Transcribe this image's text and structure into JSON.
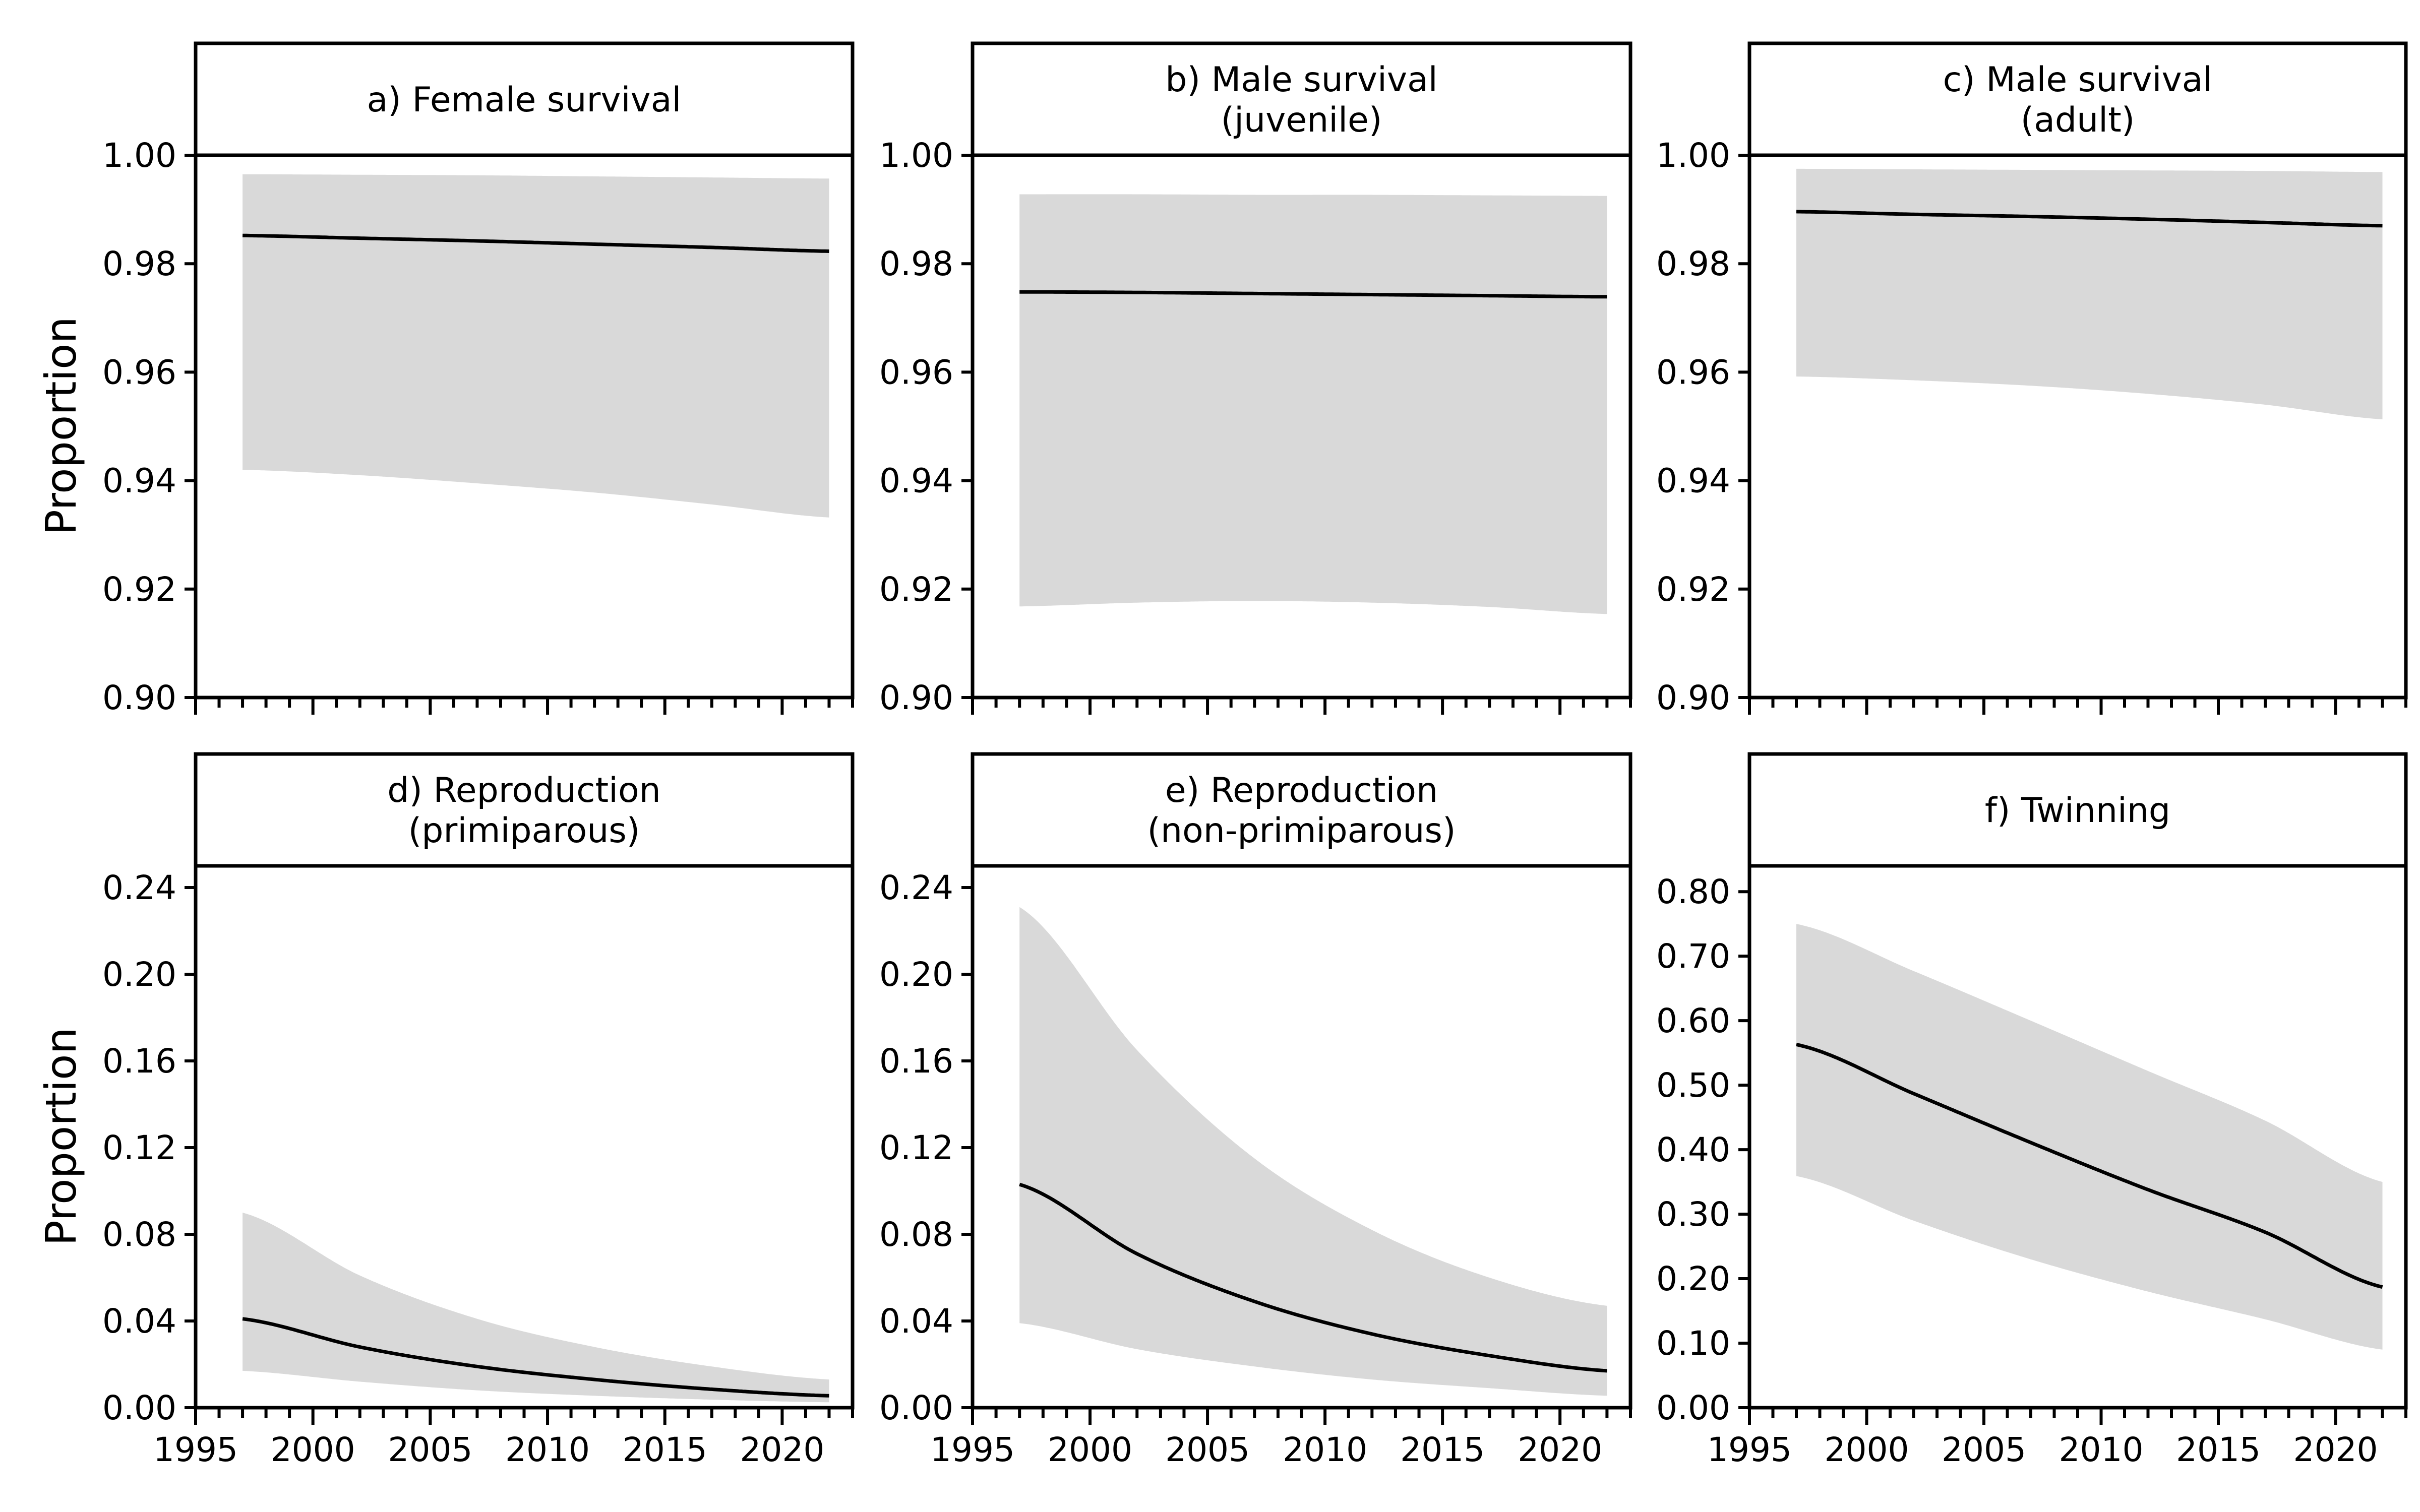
{
  "figure": {
    "ylabel": "Proportion",
    "band_color": "#d9d9d9",
    "line_color": "#000000"
  },
  "chart_data": [
    {
      "type": "line",
      "title_lines": [
        "a) Female survival"
      ],
      "xlabel": "",
      "ylabel": "Proportion",
      "xlim": [
        1995,
        2023
      ],
      "ylim": [
        0.9,
        1.0
      ],
      "xticks": [
        1995,
        2000,
        2005,
        2010,
        2015,
        2020
      ],
      "xtick_labels": [],
      "yticks": [
        0.9,
        0.92,
        0.94,
        0.96,
        0.98,
        1.0
      ],
      "ytick_labels": [
        "0.90",
        "0.92",
        "0.94",
        "0.96",
        "0.98",
        "1.00"
      ],
      "x": [
        1997,
        2002,
        2007,
        2012,
        2017,
        2022
      ],
      "series": [
        {
          "estimate": [
            0.9852,
            0.9847,
            0.9842,
            0.9836,
            0.983,
            0.9823
          ],
          "lower": [
            0.942,
            0.941,
            0.9395,
            0.9378,
            0.9356,
            0.9332
          ],
          "upper": [
            0.9965,
            0.9964,
            0.9963,
            0.9961,
            0.9959,
            0.9957
          ]
        }
      ]
    },
    {
      "type": "line",
      "title_lines": [
        "b) Male survival",
        "(juvenile)"
      ],
      "xlabel": "",
      "ylabel": "",
      "xlim": [
        1995,
        2023
      ],
      "ylim": [
        0.9,
        1.0
      ],
      "xticks": [
        1995,
        2000,
        2005,
        2010,
        2015,
        2020
      ],
      "xtick_labels": [],
      "yticks": [
        0.9,
        0.92,
        0.94,
        0.96,
        0.98,
        1.0
      ],
      "ytick_labels": [
        "0.90",
        "0.92",
        "0.94",
        "0.96",
        "0.98",
        "1.00"
      ],
      "x": [
        1997,
        2002,
        2007,
        2012,
        2017,
        2022
      ],
      "series": [
        {
          "estimate": [
            0.9748,
            0.9747,
            0.9745,
            0.9743,
            0.9741,
            0.9739
          ],
          "lower": [
            0.9168,
            0.9175,
            0.9178,
            0.9175,
            0.9167,
            0.9154
          ],
          "upper": [
            0.9928,
            0.9928,
            0.9927,
            0.9927,
            0.9926,
            0.9925
          ]
        }
      ]
    },
    {
      "type": "line",
      "title_lines": [
        "c) Male survival",
        "(adult)"
      ],
      "xlabel": "",
      "ylabel": "",
      "xlim": [
        1995,
        2023
      ],
      "ylim": [
        0.9,
        1.0
      ],
      "xticks": [
        1995,
        2000,
        2005,
        2010,
        2015,
        2020
      ],
      "xtick_labels": [],
      "yticks": [
        0.9,
        0.92,
        0.94,
        0.96,
        0.98,
        1.0
      ],
      "ytick_labels": [
        "0.90",
        "0.92",
        "0.94",
        "0.96",
        "0.98",
        "1.00"
      ],
      "x": [
        1997,
        2002,
        2007,
        2012,
        2017,
        2022
      ],
      "series": [
        {
          "estimate": [
            0.9896,
            0.9891,
            0.9887,
            0.9882,
            0.9876,
            0.987
          ],
          "lower": [
            0.9592,
            0.9585,
            0.9575,
            0.956,
            0.954,
            0.9513
          ],
          "upper": [
            0.9975,
            0.9974,
            0.9973,
            0.9972,
            0.9971,
            0.9969
          ]
        }
      ]
    },
    {
      "type": "line",
      "title_lines": [
        "d) Reproduction",
        "(primiparous)"
      ],
      "xlabel": "",
      "ylabel": "Proportion",
      "xlim": [
        1995,
        2023
      ],
      "ylim": [
        0.0,
        0.25
      ],
      "xticks": [
        1995,
        2000,
        2005,
        2010,
        2015,
        2020
      ],
      "xtick_labels": [
        "1995",
        "2000",
        "2005",
        "2010",
        "2015",
        "2020"
      ],
      "yticks": [
        0.0,
        0.04,
        0.08,
        0.12,
        0.16,
        0.2,
        0.24
      ],
      "ytick_labels": [
        "0.00",
        "0.04",
        "0.08",
        "0.12",
        "0.16",
        "0.20",
        "0.24"
      ],
      "x": [
        1997,
        2002,
        2007,
        2012,
        2017,
        2022
      ],
      "series": [
        {
          "estimate": [
            0.041,
            0.028,
            0.019,
            0.013,
            0.0085,
            0.0055
          ],
          "lower": [
            0.017,
            0.012,
            0.008,
            0.0055,
            0.0037,
            0.0025
          ],
          "upper": [
            0.09,
            0.061,
            0.041,
            0.028,
            0.019,
            0.013
          ]
        }
      ]
    },
    {
      "type": "line",
      "title_lines": [
        "e) Reproduction",
        "(non-primiparous)"
      ],
      "xlabel": "",
      "ylabel": "",
      "xlim": [
        1995,
        2023
      ],
      "ylim": [
        0.0,
        0.25
      ],
      "xticks": [
        1995,
        2000,
        2005,
        2010,
        2015,
        2020
      ],
      "xtick_labels": [
        "1995",
        "2000",
        "2005",
        "2010",
        "2015",
        "2020"
      ],
      "yticks": [
        0.0,
        0.04,
        0.08,
        0.12,
        0.16,
        0.2,
        0.24
      ],
      "ytick_labels": [
        "0.00",
        "0.04",
        "0.08",
        "0.12",
        "0.16",
        "0.20",
        "0.24"
      ],
      "x": [
        1997,
        2002,
        2007,
        2012,
        2017,
        2022
      ],
      "series": [
        {
          "estimate": [
            0.103,
            0.071,
            0.049,
            0.034,
            0.024,
            0.017
          ],
          "lower": [
            0.039,
            0.027,
            0.019,
            0.013,
            0.009,
            0.0055
          ],
          "upper": [
            0.231,
            0.165,
            0.115,
            0.082,
            0.06,
            0.047
          ]
        }
      ]
    },
    {
      "type": "line",
      "title_lines": [
        "f) Twinning"
      ],
      "xlabel": "",
      "ylabel": "",
      "xlim": [
        1995,
        2023
      ],
      "ylim": [
        0.0,
        0.84
      ],
      "xticks": [
        1995,
        2000,
        2005,
        2010,
        2015,
        2020
      ],
      "xtick_labels": [
        "1995",
        "2000",
        "2005",
        "2010",
        "2015",
        "2020"
      ],
      "yticks": [
        0.0,
        0.1,
        0.2,
        0.3,
        0.4,
        0.5,
        0.6,
        0.7,
        0.8
      ],
      "ytick_labels": [
        "0.00",
        "0.10",
        "0.20",
        "0.30",
        "0.40",
        "0.50",
        "0.60",
        "0.70",
        "0.80"
      ],
      "x": [
        1997,
        2002,
        2007,
        2012,
        2017,
        2022
      ],
      "series": [
        {
          "estimate": [
            0.563,
            0.487,
            0.411,
            0.338,
            0.272,
            0.187
          ],
          "lower": [
            0.359,
            0.29,
            0.23,
            0.18,
            0.137,
            0.09
          ],
          "upper": [
            0.75,
            0.677,
            0.6,
            0.522,
            0.445,
            0.35
          ]
        }
      ]
    }
  ]
}
